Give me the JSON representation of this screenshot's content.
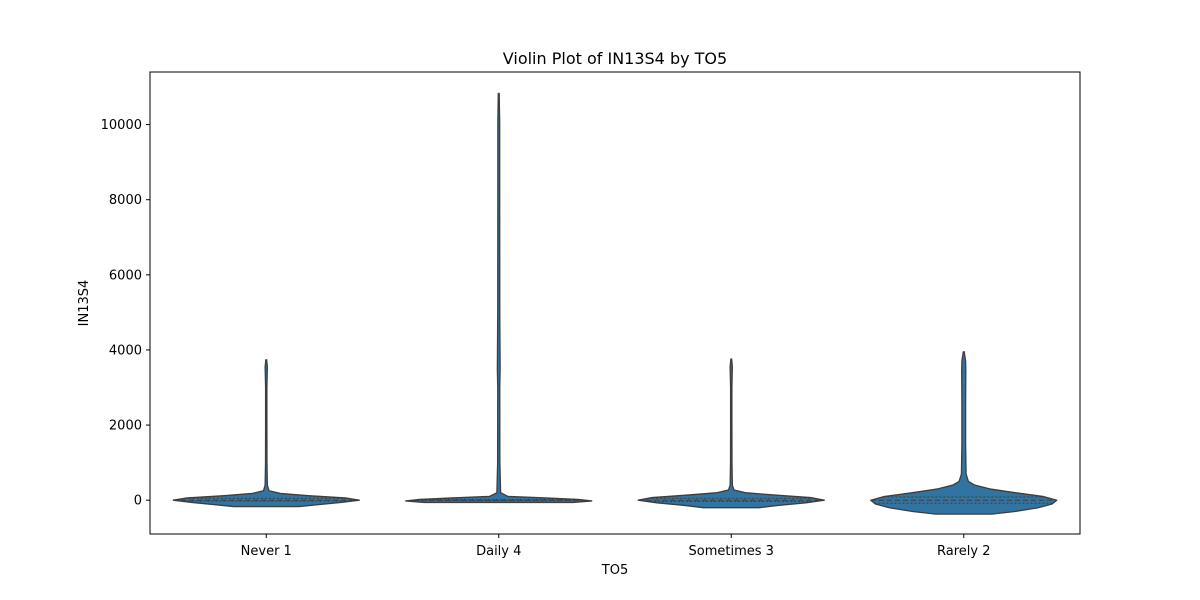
{
  "chart_data": {
    "type": "violin",
    "title": "Violin Plot of IN13S4 by TO5",
    "xlabel": "TO5",
    "ylabel": "IN13S4",
    "categories": [
      "Never 1",
      "Daily 4",
      "Sometimes 3",
      "Rarely 2"
    ],
    "yticks": [
      0,
      2000,
      4000,
      6000,
      8000,
      10000
    ],
    "ylim": [
      -900,
      11400
    ],
    "grid": false,
    "legend": "none",
    "fill_color": "#3274a1",
    "edge_color": "#3d3d3d",
    "violins": [
      {
        "category": "Never 1",
        "min": -170,
        "max": 3740,
        "q1": -20,
        "median": 0,
        "q3": 50,
        "density": [
          [
            -170,
            0.35
          ],
          [
            -120,
            0.55
          ],
          [
            -60,
            0.8
          ],
          [
            0,
            1.0
          ],
          [
            60,
            0.85
          ],
          [
            120,
            0.45
          ],
          [
            180,
            0.15
          ],
          [
            250,
            0.03
          ],
          [
            400,
            0.012
          ],
          [
            1000,
            0.008
          ],
          [
            2000,
            0.007
          ],
          [
            3000,
            0.007
          ],
          [
            3550,
            0.012
          ],
          [
            3740,
            0.004
          ]
        ]
      },
      {
        "category": "Daily 4",
        "min": -60,
        "max": 10830,
        "q1": -10,
        "median": 0,
        "q3": 20,
        "density": [
          [
            -60,
            0.8
          ],
          [
            -20,
            1.0
          ],
          [
            20,
            0.85
          ],
          [
            60,
            0.5
          ],
          [
            100,
            0.1
          ],
          [
            200,
            0.02
          ],
          [
            1000,
            0.012
          ],
          [
            3000,
            0.011
          ],
          [
            3500,
            0.015
          ],
          [
            5000,
            0.011
          ],
          [
            8000,
            0.01
          ],
          [
            10000,
            0.01
          ],
          [
            10830,
            0.005
          ]
        ]
      },
      {
        "category": "Sometimes 3",
        "min": -200,
        "max": 3760,
        "q1": -30,
        "median": 0,
        "q3": 50,
        "density": [
          [
            -200,
            0.3
          ],
          [
            -140,
            0.5
          ],
          [
            -70,
            0.8
          ],
          [
            0,
            1.0
          ],
          [
            70,
            0.85
          ],
          [
            140,
            0.45
          ],
          [
            200,
            0.15
          ],
          [
            270,
            0.03
          ],
          [
            400,
            0.012
          ],
          [
            1000,
            0.008
          ],
          [
            2000,
            0.007
          ],
          [
            3000,
            0.007
          ],
          [
            3550,
            0.012
          ],
          [
            3760,
            0.004
          ]
        ]
      },
      {
        "category": "Rarely 2",
        "min": -370,
        "max": 3950,
        "q1": -80,
        "median": 0,
        "q3": 90,
        "density": [
          [
            -370,
            0.3
          ],
          [
            -300,
            0.55
          ],
          [
            -200,
            0.8
          ],
          [
            -100,
            0.95
          ],
          [
            0,
            1.0
          ],
          [
            100,
            0.85
          ],
          [
            200,
            0.55
          ],
          [
            300,
            0.28
          ],
          [
            400,
            0.12
          ],
          [
            500,
            0.05
          ],
          [
            700,
            0.025
          ],
          [
            1500,
            0.02
          ],
          [
            2500,
            0.02
          ],
          [
            3400,
            0.022
          ],
          [
            3700,
            0.02
          ],
          [
            3950,
            0.005
          ]
        ]
      }
    ]
  }
}
